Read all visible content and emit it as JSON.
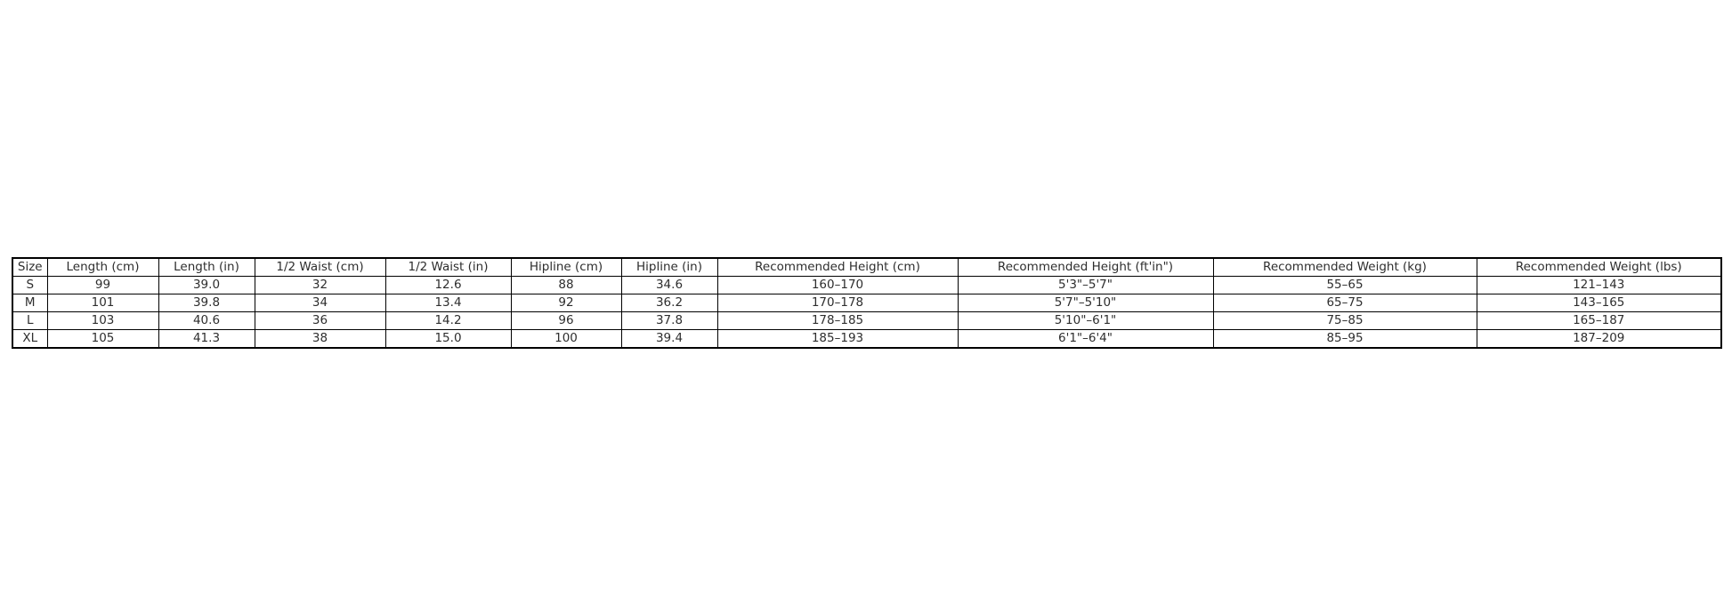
{
  "colors": {
    "background": "#ffffff",
    "table_border": "#000000",
    "table_text": "#2e2e2e"
  },
  "table": {
    "columns": [
      "Size",
      "Length (cm)",
      "Length (in)",
      "1/2 Waist (cm)",
      "1/2 Waist (in)",
      "Hipline (cm)",
      "Hipline (in)",
      "Recommended Height (cm)",
      "Recommended Height (ft'in\")",
      "Recommended Weight (kg)",
      "Recommended Weight (lbs)"
    ],
    "rows": [
      [
        "S",
        "99",
        "39.0",
        "32",
        "12.6",
        "88",
        "34.6",
        "160–170",
        "5'3\"–5'7\"",
        "55–65",
        "121–143"
      ],
      [
        "M",
        "101",
        "39.8",
        "34",
        "13.4",
        "92",
        "36.2",
        "170–178",
        "5'7\"–5'10\"",
        "65–75",
        "143–165"
      ],
      [
        "L",
        "103",
        "40.6",
        "36",
        "14.2",
        "96",
        "37.8",
        "178–185",
        "5'10\"–6'1\"",
        "75–85",
        "165–187"
      ],
      [
        "XL",
        "105",
        "41.3",
        "38",
        "15.0",
        "100",
        "39.4",
        "185–193",
        "6'1\"–6'4\"",
        "85–95",
        "187–209"
      ]
    ]
  },
  "chart_data": {
    "type": "table",
    "title": "",
    "columns": [
      "Size",
      "Length (cm)",
      "Length (in)",
      "1/2 Waist (cm)",
      "1/2 Waist (in)",
      "Hipline (cm)",
      "Hipline (in)",
      "Recommended Height (cm)",
      "Recommended Height (ft'in\")",
      "Recommended Weight (kg)",
      "Recommended Weight (lbs)"
    ],
    "rows": [
      [
        "S",
        "99",
        "39.0",
        "32",
        "12.6",
        "88",
        "34.6",
        "160–170",
        "5'3\"–5'7\"",
        "55–65",
        "121–143"
      ],
      [
        "M",
        "101",
        "39.8",
        "34",
        "13.4",
        "92",
        "36.2",
        "170–178",
        "5'7\"–5'10\"",
        "65–75",
        "143–165"
      ],
      [
        "L",
        "103",
        "40.6",
        "36",
        "14.2",
        "96",
        "37.8",
        "178–185",
        "5'10\"–6'1\"",
        "75–85",
        "165–187"
      ],
      [
        "XL",
        "105",
        "41.3",
        "38",
        "15.0",
        "100",
        "39.4",
        "185–193",
        "6'1\"–6'4\"",
        "85–95",
        "187–209"
      ]
    ]
  }
}
